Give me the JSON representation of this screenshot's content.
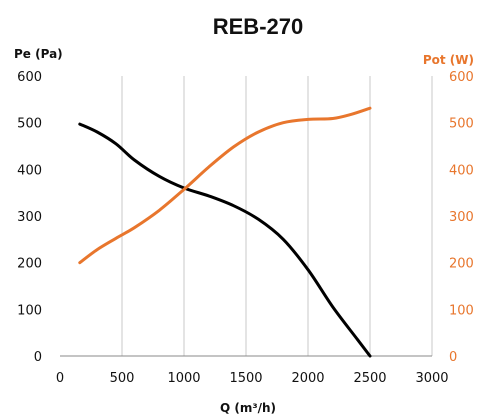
{
  "chart_data": {
    "type": "line",
    "title": "REB-270",
    "xlabel": "Q (m³/h)",
    "ylabel_left": "Pe (Pa)",
    "ylabel_right": "Pot (W)",
    "xlim": [
      0,
      3000
    ],
    "ylim_left": [
      0,
      600
    ],
    "ylim_right": [
      0,
      600
    ],
    "x_ticks": [
      "0",
      "500",
      "1000",
      "1500",
      "2000",
      "2500",
      "3000"
    ],
    "y_left_ticks": [
      "0",
      "100",
      "200",
      "300",
      "400",
      "500",
      "600"
    ],
    "y_right_ticks": [
      "0",
      "100",
      "200",
      "300",
      "400",
      "500",
      "600"
    ],
    "grid": "vertical",
    "colors": {
      "left_axis": "#000000",
      "right_axis": "#e8762d",
      "grid": "#c8c8c8",
      "axis_line": "#888888"
    },
    "series": [
      {
        "axis": "left",
        "color": "#000000",
        "points": [
          [
            160,
            497
          ],
          [
            300,
            480
          ],
          [
            450,
            455
          ],
          [
            600,
            420
          ],
          [
            800,
            385
          ],
          [
            1000,
            360
          ],
          [
            1200,
            343
          ],
          [
            1400,
            322
          ],
          [
            1600,
            293
          ],
          [
            1800,
            250
          ],
          [
            2000,
            185
          ],
          [
            2200,
            105
          ],
          [
            2400,
            35
          ],
          [
            2500,
            0
          ]
        ]
      },
      {
        "axis": "right",
        "color": "#e8762d",
        "points": [
          [
            160,
            200
          ],
          [
            300,
            228
          ],
          [
            450,
            252
          ],
          [
            600,
            275
          ],
          [
            800,
            312
          ],
          [
            1000,
            357
          ],
          [
            1200,
            405
          ],
          [
            1400,
            448
          ],
          [
            1600,
            480
          ],
          [
            1800,
            500
          ],
          [
            2000,
            507
          ],
          [
            2200,
            509
          ],
          [
            2350,
            518
          ],
          [
            2500,
            531
          ]
        ]
      }
    ]
  }
}
